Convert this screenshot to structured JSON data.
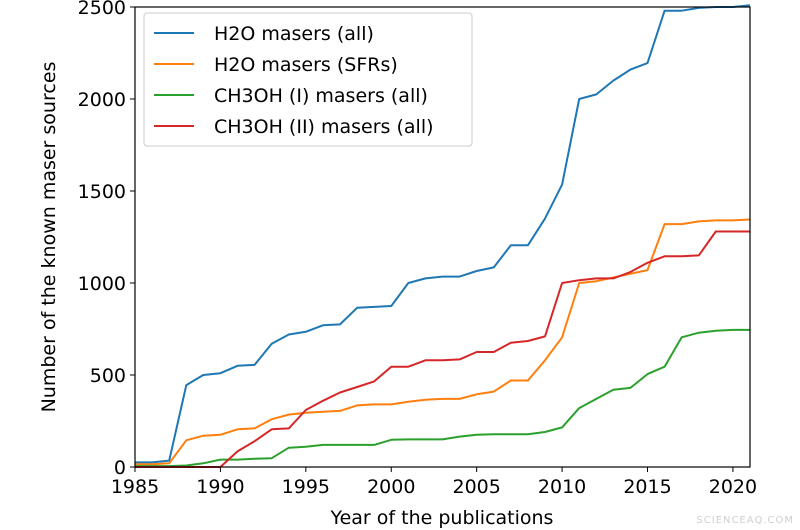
{
  "chart_data": {
    "type": "line",
    "title": "",
    "xlabel": "Year of the publications",
    "ylabel": "Number of the known maser sources",
    "xlim": [
      1985,
      2021
    ],
    "ylim": [
      0,
      2500
    ],
    "xticks": [
      1985,
      1990,
      1995,
      2000,
      2005,
      2010,
      2015,
      2020
    ],
    "yticks": [
      0,
      500,
      1000,
      1500,
      2000,
      2500
    ],
    "grid": false,
    "legend_position": "top-left",
    "x": [
      1985,
      1986,
      1987,
      1988,
      1989,
      1990,
      1991,
      1992,
      1993,
      1994,
      1995,
      1996,
      1997,
      1998,
      1999,
      2000,
      2001,
      2002,
      2003,
      2004,
      2005,
      2006,
      2007,
      2008,
      2009,
      2010,
      2011,
      2012,
      2013,
      2014,
      2015,
      2016,
      2017,
      2018,
      2019,
      2020,
      2021
    ],
    "series": [
      {
        "name": "H2O masers (all)",
        "color": "#1f77b4",
        "values": [
          25,
          25,
          35,
          445,
          500,
          510,
          550,
          555,
          670,
          720,
          735,
          770,
          775,
          865,
          870,
          875,
          1000,
          1025,
          1035,
          1035,
          1065,
          1085,
          1205,
          1205,
          1350,
          1535,
          2000,
          2025,
          2100,
          2160,
          2195,
          2480,
          2480,
          2495,
          2500,
          2500,
          2510
        ]
      },
      {
        "name": "H2O masers (SFRs)",
        "color": "#ff7f0e",
        "values": [
          15,
          15,
          20,
          145,
          170,
          175,
          205,
          210,
          260,
          285,
          295,
          300,
          305,
          335,
          340,
          340,
          355,
          365,
          370,
          370,
          395,
          410,
          470,
          470,
          580,
          705,
          1000,
          1010,
          1030,
          1050,
          1070,
          1320,
          1320,
          1335,
          1340,
          1340,
          1345
        ]
      },
      {
        "name": "CH3OH (I) masers (all)",
        "color": "#2ca02c",
        "values": [
          5,
          5,
          5,
          8,
          20,
          40,
          40,
          45,
          48,
          105,
          110,
          120,
          120,
          120,
          120,
          148,
          150,
          150,
          150,
          165,
          175,
          178,
          178,
          178,
          190,
          215,
          320,
          370,
          420,
          430,
          505,
          545,
          705,
          730,
          740,
          745,
          745
        ]
      },
      {
        "name": "CH3OH (II) masers (all)",
        "color": "#d62728",
        "values": [
          0,
          0,
          0,
          0,
          0,
          0,
          85,
          140,
          205,
          210,
          310,
          360,
          405,
          435,
          465,
          545,
          545,
          580,
          580,
          585,
          625,
          625,
          675,
          685,
          710,
          1000,
          1015,
          1025,
          1025,
          1060,
          1110,
          1145,
          1145,
          1150,
          1280,
          1280,
          1280
        ]
      }
    ]
  },
  "watermark": "SCIENCEAQ.COM"
}
